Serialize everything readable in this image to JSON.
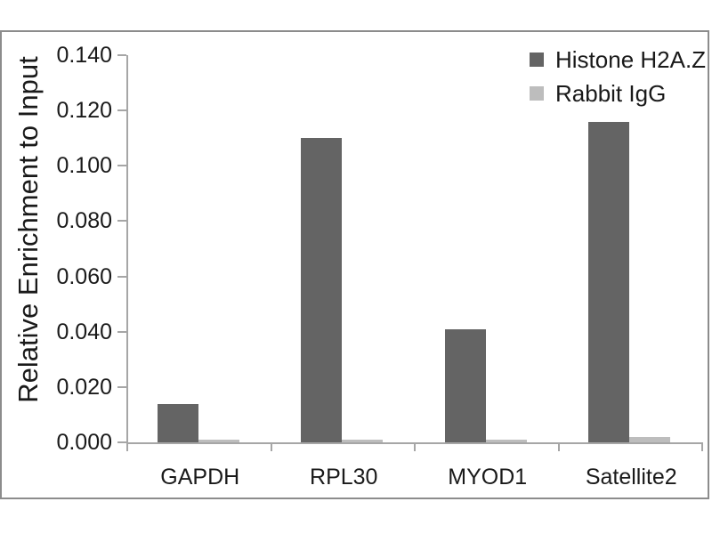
{
  "figure": {
    "background_color": "#ffffff",
    "frame_border_color": "#8c8c8c",
    "axis_color": "#a6a6a6",
    "text_color": "#1a1a1a"
  },
  "chart_data": {
    "type": "bar",
    "title": "",
    "xlabel": "",
    "ylabel": "Relative Enrichment to Input",
    "categories": [
      "GAPDH",
      "RPL30",
      "MYOD1",
      "Satellite2"
    ],
    "series": [
      {
        "name": "Histone H2A.Z",
        "color": "#646464",
        "values": [
          0.014,
          0.11,
          0.041,
          0.116
        ]
      },
      {
        "name": "Rabbit IgG",
        "color": "#bdbdbd",
        "values": [
          0.001,
          0.001,
          0.001,
          0.002
        ]
      }
    ],
    "ylim": [
      0,
      0.14
    ],
    "ytick_step": 0.02,
    "ytick_decimals": 3,
    "grid": false,
    "legend_position": "top-right"
  }
}
